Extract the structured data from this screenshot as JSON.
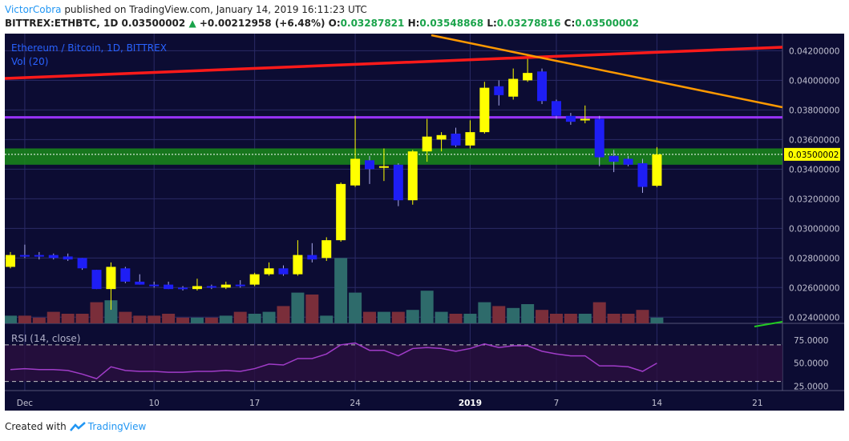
{
  "header": {
    "author": "VictorCobra",
    "published": "published on TradingView.com, January 14, 2019 16:11:23 UTC",
    "symbol": "BITTREX:ETHBTC, 1D",
    "last": "0.03500002",
    "change_arrow": "▲",
    "change": "+0.00212958 (+6.48%)",
    "o_label": "O:",
    "o_value": "0.03287821",
    "h_label": "H:",
    "h_value": "0.03548868",
    "l_label": "L:",
    "l_value": "0.03278816",
    "c_label": "C:",
    "c_value": "0.03500002"
  },
  "pane": {
    "title": "Ethereum / Bitcoin, 1D, BITTREX",
    "vol_label": "Vol (20)",
    "rsi_label": "RSI (14, close)"
  },
  "footer": {
    "created_with": "Created with",
    "brand": "TradingView"
  },
  "colors": {
    "background": "#0c0c33",
    "up": "#ffff00",
    "down": "#1e1ef5",
    "vol_up": "#2e6b6b",
    "vol_down": "#7a2e3a",
    "rsi": "#a03cc8",
    "red_line": "#ff1a1a",
    "orange_line": "#ff9900",
    "purple_line": "#9933ff",
    "zone": "#1a8a1a",
    "grid": "#2a2a66",
    "axis_text": "#c0c0d0"
  },
  "chart_data": {
    "type": "candlestick",
    "title": "Ethereum / Bitcoin, 1D, BITTREX",
    "price_axis": {
      "ticks": [
        "0.04200000",
        "0.04000000",
        "0.03800000",
        "0.03600000",
        "0.03400000",
        "0.03200000",
        "0.03000000",
        "0.02800000",
        "0.02600000",
        "0.02400000"
      ],
      "range": [
        0.0238,
        0.0424
      ],
      "last_price_label": "0.03500002"
    },
    "rsi_axis": {
      "ticks": [
        "75.0000",
        "50.0000",
        "25.0000"
      ],
      "range": [
        20,
        90
      ],
      "bands": [
        70,
        30
      ]
    },
    "time_axis": {
      "labels": [
        {
          "text": "Dec",
          "index": 1
        },
        {
          "text": "10",
          "index": 10
        },
        {
          "text": "17",
          "index": 17
        },
        {
          "text": "24",
          "index": 24
        },
        {
          "text": "2019",
          "index": 32
        },
        {
          "text": "7",
          "index": 38
        },
        {
          "text": "14",
          "index": 45
        },
        {
          "text": "21",
          "index": 52
        }
      ]
    },
    "candles": [
      {
        "o": 0.0274,
        "h": 0.0284,
        "l": 0.0273,
        "c": 0.0282
      },
      {
        "o": 0.0282,
        "h": 0.0289,
        "l": 0.028,
        "c": 0.0281
      },
      {
        "o": 0.0282,
        "h": 0.0284,
        "l": 0.0279,
        "c": 0.0281
      },
      {
        "o": 0.0282,
        "h": 0.0283,
        "l": 0.0279,
        "c": 0.028
      },
      {
        "o": 0.0281,
        "h": 0.0283,
        "l": 0.0278,
        "c": 0.0279
      },
      {
        "o": 0.028,
        "h": 0.028,
        "l": 0.0272,
        "c": 0.0273
      },
      {
        "o": 0.0272,
        "h": 0.0272,
        "l": 0.0259,
        "c": 0.0259
      },
      {
        "o": 0.0259,
        "h": 0.0277,
        "l": 0.0245,
        "c": 0.0274
      },
      {
        "o": 0.0273,
        "h": 0.0274,
        "l": 0.0263,
        "c": 0.0264
      },
      {
        "o": 0.0264,
        "h": 0.0269,
        "l": 0.0262,
        "c": 0.0262
      },
      {
        "o": 0.0262,
        "h": 0.0264,
        "l": 0.026,
        "c": 0.0261
      },
      {
        "o": 0.0262,
        "h": 0.0264,
        "l": 0.0259,
        "c": 0.0259
      },
      {
        "o": 0.026,
        "h": 0.0261,
        "l": 0.0258,
        "c": 0.0259
      },
      {
        "o": 0.0259,
        "h": 0.0266,
        "l": 0.0258,
        "c": 0.0261
      },
      {
        "o": 0.0261,
        "h": 0.0262,
        "l": 0.0259,
        "c": 0.026
      },
      {
        "o": 0.026,
        "h": 0.0264,
        "l": 0.0259,
        "c": 0.0262
      },
      {
        "o": 0.0262,
        "h": 0.0265,
        "l": 0.026,
        "c": 0.0261
      },
      {
        "o": 0.0262,
        "h": 0.027,
        "l": 0.0261,
        "c": 0.0269
      },
      {
        "o": 0.0269,
        "h": 0.0277,
        "l": 0.0268,
        "c": 0.0273
      },
      {
        "o": 0.0273,
        "h": 0.0275,
        "l": 0.0268,
        "c": 0.0269
      },
      {
        "o": 0.0269,
        "h": 0.0292,
        "l": 0.0268,
        "c": 0.0282
      },
      {
        "o": 0.0282,
        "h": 0.029,
        "l": 0.0277,
        "c": 0.0279
      },
      {
        "o": 0.028,
        "h": 0.0294,
        "l": 0.0278,
        "c": 0.0292
      },
      {
        "o": 0.0292,
        "h": 0.0331,
        "l": 0.0291,
        "c": 0.033
      },
      {
        "o": 0.0329,
        "h": 0.0376,
        "l": 0.0328,
        "c": 0.0347
      },
      {
        "o": 0.0346,
        "h": 0.0349,
        "l": 0.033,
        "c": 0.034
      },
      {
        "o": 0.0341,
        "h": 0.0354,
        "l": 0.0332,
        "c": 0.0342
      },
      {
        "o": 0.0343,
        "h": 0.0344,
        "l": 0.0315,
        "c": 0.0319
      },
      {
        "o": 0.0319,
        "h": 0.0353,
        "l": 0.0316,
        "c": 0.0352
      },
      {
        "o": 0.0352,
        "h": 0.0374,
        "l": 0.0345,
        "c": 0.0362
      },
      {
        "o": 0.036,
        "h": 0.0365,
        "l": 0.0352,
        "c": 0.0363
      },
      {
        "o": 0.0364,
        "h": 0.0368,
        "l": 0.0355,
        "c": 0.0356
      },
      {
        "o": 0.0356,
        "h": 0.0373,
        "l": 0.0354,
        "c": 0.0365
      },
      {
        "o": 0.0365,
        "h": 0.0399,
        "l": 0.0364,
        "c": 0.0395
      },
      {
        "o": 0.0396,
        "h": 0.04,
        "l": 0.0383,
        "c": 0.039
      },
      {
        "o": 0.0389,
        "h": 0.0408,
        "l": 0.0387,
        "c": 0.0401
      },
      {
        "o": 0.04,
        "h": 0.0417,
        "l": 0.0399,
        "c": 0.0405
      },
      {
        "o": 0.0406,
        "h": 0.0408,
        "l": 0.0384,
        "c": 0.0386
      },
      {
        "o": 0.0386,
        "h": 0.0387,
        "l": 0.0374,
        "c": 0.0376
      },
      {
        "o": 0.0376,
        "h": 0.0378,
        "l": 0.037,
        "c": 0.0372
      },
      {
        "o": 0.0373,
        "h": 0.0383,
        "l": 0.0371,
        "c": 0.0374
      },
      {
        "o": 0.0374,
        "h": 0.0376,
        "l": 0.0342,
        "c": 0.0348
      },
      {
        "o": 0.0349,
        "h": 0.0353,
        "l": 0.0338,
        "c": 0.0345
      },
      {
        "o": 0.0347,
        "h": 0.0349,
        "l": 0.0342,
        "c": 0.0343
      },
      {
        "o": 0.0344,
        "h": 0.0347,
        "l": 0.0324,
        "c": 0.0328
      },
      {
        "o": 0.03287821,
        "h": 0.03548868,
        "l": 0.03278816,
        "c": 0.03500002
      }
    ],
    "volume_rel": [
      0.2,
      0.2,
      0.15,
      0.3,
      0.25,
      0.25,
      0.55,
      0.6,
      0.3,
      0.2,
      0.2,
      0.25,
      0.15,
      0.15,
      0.15,
      0.2,
      0.3,
      0.25,
      0.3,
      0.45,
      0.8,
      0.75,
      0.2,
      1.7,
      0.8,
      0.3,
      0.3,
      0.3,
      0.35,
      0.85,
      0.3,
      0.25,
      0.25,
      0.55,
      0.45,
      0.4,
      0.5,
      0.35,
      0.25,
      0.25,
      0.25,
      0.55,
      0.25,
      0.25,
      0.35,
      0.15
    ],
    "rsi": [
      43,
      44,
      43,
      43,
      42,
      38,
      33,
      46,
      42,
      41,
      41,
      40,
      40,
      41,
      41,
      42,
      41,
      44,
      49,
      48,
      55,
      55,
      60,
      70,
      72,
      64,
      64,
      58,
      66,
      67,
      66,
      63,
      66,
      71,
      67,
      69,
      69,
      63,
      60,
      58,
      58,
      47,
      47,
      46,
      41,
      50
    ],
    "overlays": {
      "red_trendline": "resistance",
      "orange_trendline": "resistance",
      "purple_level": 0.0375,
      "green_zone": [
        0.0343,
        0.0354
      ]
    }
  }
}
